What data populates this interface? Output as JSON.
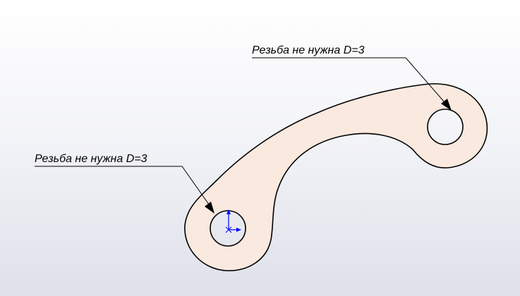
{
  "annotations": [
    {
      "text": "Резьба не нужна D=3"
    },
    {
      "text": "Резьба не нужна D=3"
    }
  ],
  "colors": {
    "part_fill": "#f9e9df",
    "part_outline": "#000000",
    "origin_axis": "#0000ff",
    "leader": "#000000"
  }
}
